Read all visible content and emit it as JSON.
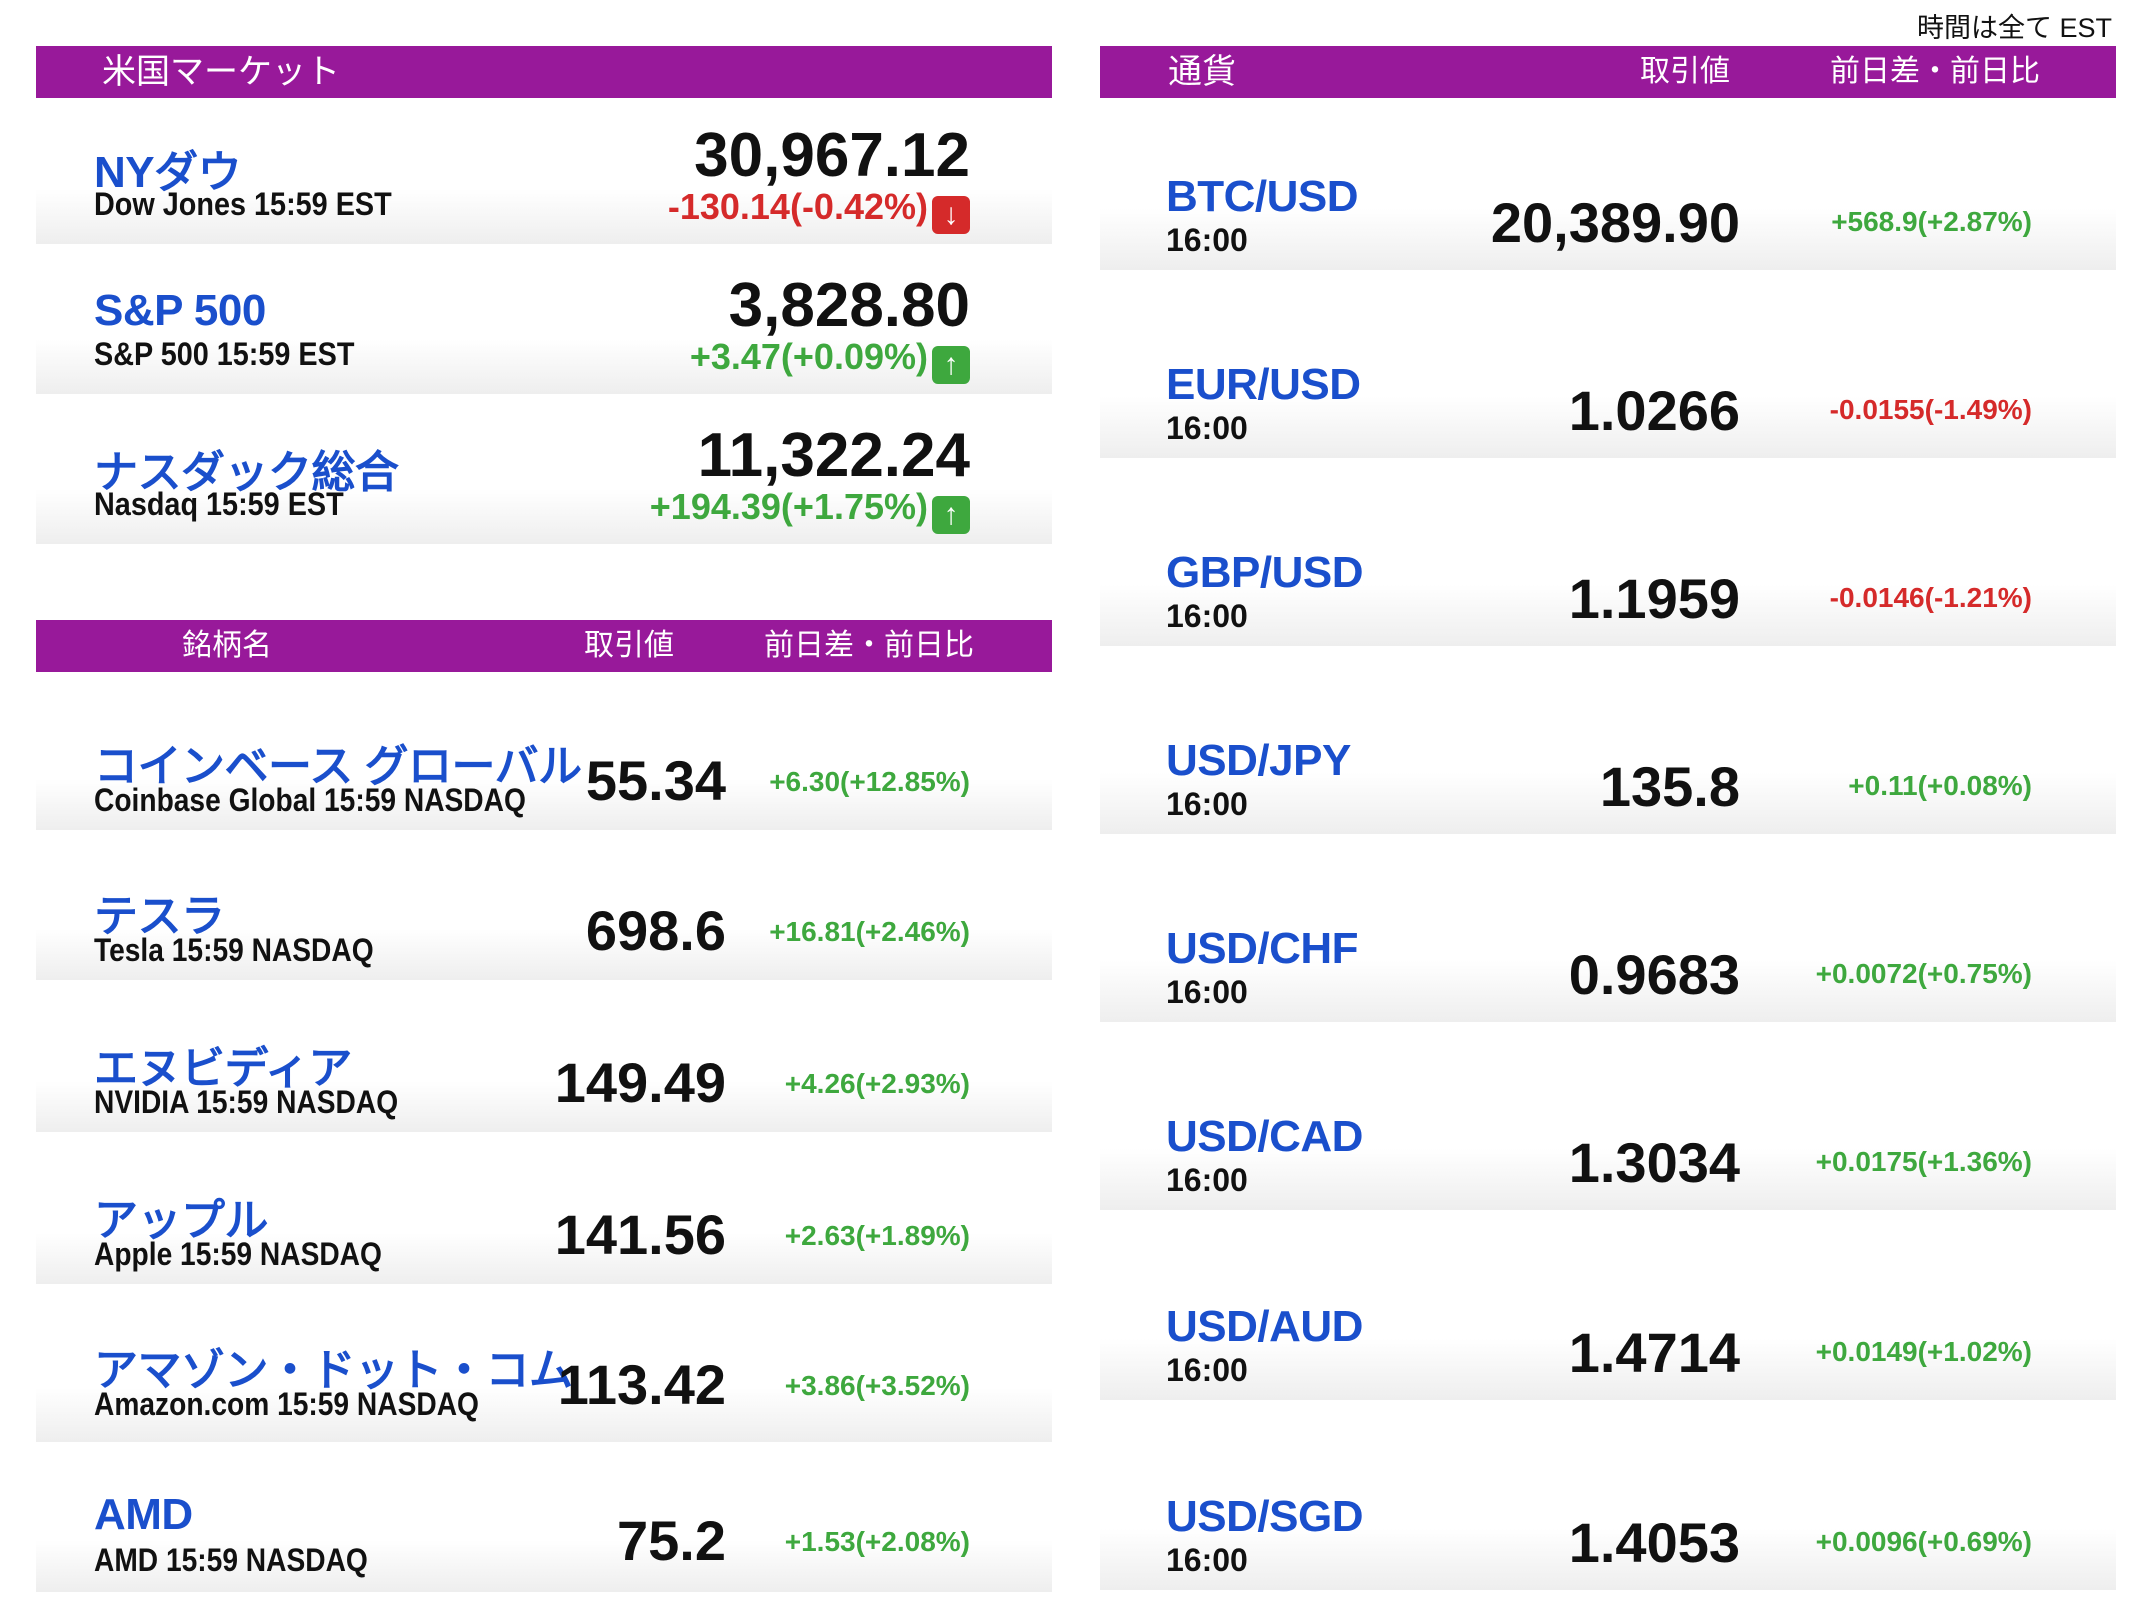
{
  "note": "時間は全て EST",
  "us_market": {
    "header": "米国マーケット",
    "indices": [
      {
        "name": "NYダウ",
        "sub": "Dow Jones 15:59 EST",
        "price": "30,967.12",
        "change": "-130.14(-0.42%)",
        "direction": "down",
        "icon": "arrow-down-icon"
      },
      {
        "name": "S&P 500",
        "sub": "S&P 500 15:59 EST",
        "price": "3,828.80",
        "change": "+3.47(+0.09%)",
        "direction": "up",
        "icon": "arrow-up-icon"
      },
      {
        "name": "ナスダック総合",
        "sub": "Nasdaq 15:59 EST",
        "price": "11,322.24",
        "change": "+194.39(+1.75%)",
        "direction": "up",
        "icon": "arrow-up-icon"
      }
    ]
  },
  "stocks": {
    "headers": {
      "name": "銘柄名",
      "price": "取引値",
      "change": "前日差・前日比"
    },
    "rows": [
      {
        "name": "コインベース グローバル",
        "sub": "Coinbase Global 15:59  NASDAQ",
        "price": "55.34",
        "change": "+6.30(+12.85%)",
        "direction": "up"
      },
      {
        "name": "テスラ",
        "sub": "Tesla 15:59  NASDAQ",
        "price": "698.6",
        "change": "+16.81(+2.46%)",
        "direction": "up"
      },
      {
        "name": "エヌビディア",
        "sub": "NVIDIA 15:59  NASDAQ",
        "price": "149.49",
        "change": "+4.26(+2.93%)",
        "direction": "up"
      },
      {
        "name": "アップル",
        "sub": "Apple 15:59  NASDAQ",
        "price": "141.56",
        "change": "+2.63(+1.89%)",
        "direction": "up"
      },
      {
        "name": "アマゾン・ドット・コム",
        "sub": "Amazon.com 15:59  NASDAQ",
        "price": "113.42",
        "change": "+3.86(+3.52%)",
        "direction": "up"
      },
      {
        "name": "AMD",
        "sub": "AMD 15:59  NASDAQ",
        "price": "75.2",
        "change": "+1.53(+2.08%)",
        "direction": "up"
      }
    ]
  },
  "currency": {
    "headers": {
      "name": "通貨",
      "price": "取引値",
      "change": "前日差・前日比"
    },
    "rows": [
      {
        "pair": "BTC/USD",
        "time": "16:00",
        "price": "20,389.90",
        "change": "+568.9(+2.87%)",
        "direction": "up"
      },
      {
        "pair": "EUR/USD",
        "time": "16:00",
        "price": "1.0266",
        "change": "-0.0155(-1.49%)",
        "direction": "down"
      },
      {
        "pair": "GBP/USD",
        "time": "16:00",
        "price": "1.1959",
        "change": "-0.0146(-1.21%)",
        "direction": "down"
      },
      {
        "pair": "USD/JPY",
        "time": "16:00",
        "price": "135.8",
        "change": "+0.11(+0.08%)",
        "direction": "up"
      },
      {
        "pair": "USD/CHF",
        "time": "16:00",
        "price": "0.9683",
        "change": "+0.0072(+0.75%)",
        "direction": "up"
      },
      {
        "pair": "USD/CAD",
        "time": "16:00",
        "price": "1.3034",
        "change": "+0.0175(+1.36%)",
        "direction": "up"
      },
      {
        "pair": "USD/AUD",
        "time": "16:00",
        "price": "1.4714",
        "change": "+0.0149(+1.02%)",
        "direction": "up"
      },
      {
        "pair": "USD/SGD",
        "time": "16:00",
        "price": "1.4053",
        "change": "+0.0096(+0.69%)",
        "direction": "up"
      }
    ]
  },
  "colors": {
    "header_bg": "#98199a",
    "title_blue": "#1a4fcc",
    "up": "#3ea83e",
    "down": "#d52a2a"
  }
}
